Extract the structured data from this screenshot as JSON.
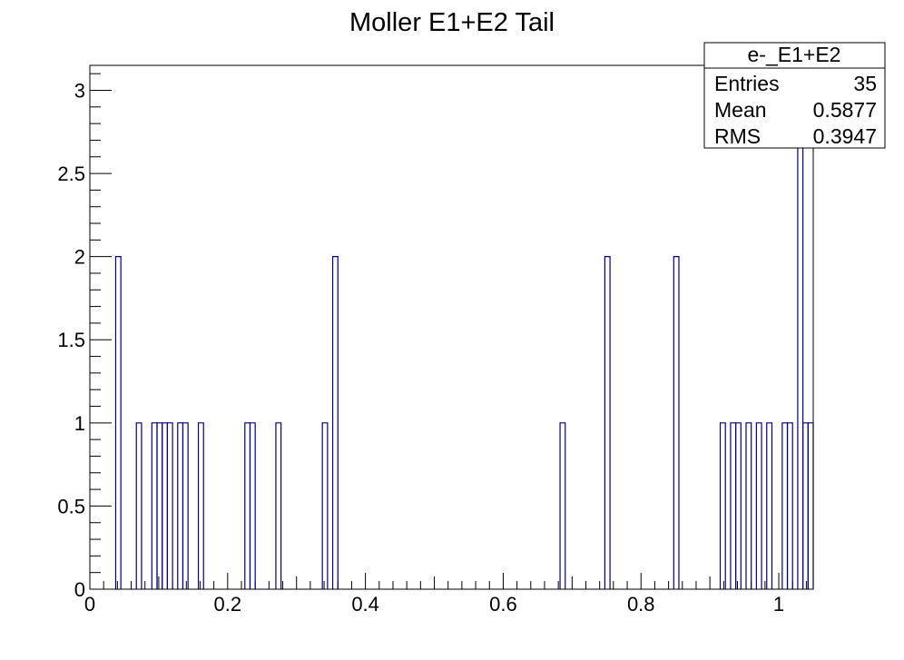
{
  "chart_data": {
    "type": "bar",
    "title": "Moller E1+E2 Tail",
    "xlabel": "",
    "ylabel": "",
    "xlim": [
      0,
      1.05
    ],
    "ylim": [
      0,
      3.15
    ],
    "xticks": [
      0,
      0.2,
      0.4,
      0.6,
      0.8,
      1
    ],
    "xtick_labels": [
      "0",
      "0.2",
      "0.4",
      "0.6",
      "0.8",
      "1"
    ],
    "yticks": [
      0,
      0.5,
      1,
      1.5,
      2,
      2.5,
      3
    ],
    "ytick_labels": [
      "0",
      "0.5",
      "1",
      "1.5",
      "2",
      "2.5",
      "3"
    ],
    "bin_width": 0.0075,
    "bins": [
      {
        "x": 0.0375,
        "count": 2
      },
      {
        "x": 0.0675,
        "count": 1
      },
      {
        "x": 0.09,
        "count": 1
      },
      {
        "x": 0.0975,
        "count": 1
      },
      {
        "x": 0.105,
        "count": 1
      },
      {
        "x": 0.1125,
        "count": 1
      },
      {
        "x": 0.1275,
        "count": 1
      },
      {
        "x": 0.135,
        "count": 1
      },
      {
        "x": 0.1575,
        "count": 1
      },
      {
        "x": 0.225,
        "count": 1
      },
      {
        "x": 0.2325,
        "count": 1
      },
      {
        "x": 0.27,
        "count": 1
      },
      {
        "x": 0.3375,
        "count": 1
      },
      {
        "x": 0.3525,
        "count": 2
      },
      {
        "x": 0.6825,
        "count": 1
      },
      {
        "x": 0.7475,
        "count": 2
      },
      {
        "x": 0.8475,
        "count": 2
      },
      {
        "x": 0.915,
        "count": 1
      },
      {
        "x": 0.93,
        "count": 1
      },
      {
        "x": 0.9375,
        "count": 1
      },
      {
        "x": 0.9525,
        "count": 1
      },
      {
        "x": 0.9675,
        "count": 1
      },
      {
        "x": 0.9825,
        "count": 1
      },
      {
        "x": 1.005,
        "count": 1
      },
      {
        "x": 1.0125,
        "count": 1
      },
      {
        "x": 1.0275,
        "count": 3
      },
      {
        "x": 1.035,
        "count": 1
      },
      {
        "x": 1.0425,
        "count": 1
      }
    ],
    "line_color": "#000080",
    "grid": false,
    "legend": "none",
    "stats_box": {
      "placement": "top-right",
      "name": "e-_E1+E2",
      "rows": [
        {
          "label": "Entries",
          "value": "35"
        },
        {
          "label": "Mean",
          "value": "0.5877"
        },
        {
          "label": "RMS",
          "value": "0.3947"
        }
      ]
    }
  }
}
